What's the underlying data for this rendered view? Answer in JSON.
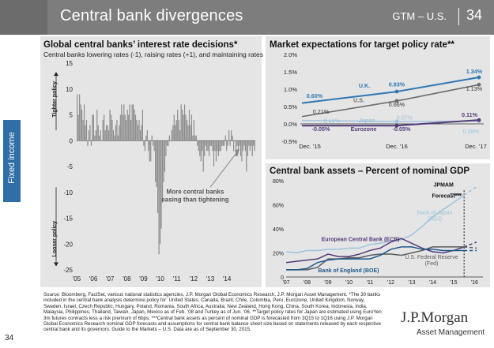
{
  "header": {
    "title": "Central bank divergences",
    "section": "GTM – U.S.",
    "page": "34"
  },
  "sidebar": {
    "label": "Fixed income"
  },
  "left_panel": {
    "title": "Global central banks’ interest rate decisions*",
    "subtitle": "Central banks lowering rates (-1), raising rates (+1), and maintaining rates (0)",
    "tighter_label": "Tighter policy",
    "looser_label": "Looser policy",
    "annotation": "More central banks easing than tightening"
  },
  "right_top": {
    "title": "Market expectations for target policy rate**"
  },
  "right_bottom": {
    "title": "Central bank assets – Percent of nominal GDP",
    "forecast_label": "JPMAM Forecast***"
  },
  "footnote": "Source: Bloomberg, FactSet, various national statistics agencies, J.P. Morgan Global Economics Research, J.P. Morgan Asset Management. *The 30 banks included in the central bank analysis determine policy for: United States, Canada, Brazil, Chile, Colombia, Peru, Eurozone, United Kingdom, Norway, Sweden, Israel, Czech Republic, Hungary, Poland, Romania, South Africa, Australia, New Zealand, Hong Kong, China, South Korea, Indonesia, India, Malaysia, Philippines, Thailand, Taiwan, Japan, Mexico as of Feb. ’08 and Turkey as of Jun. ’06. **Target policy rates for Japan are estimated using EuroYen 3m futures contracts less a risk premium of 6bps. ***Central bank assets as percent of nominal GDP is forecasted from 3Q15 to 1Q16 using J.P. Morgan Global Economics Research nominal GDP forecasts and assumptions for central bank balance sheet size based on statements released by each respective central bank and its governors. Guide to the Markets – U.S. Data are as of September 30, 2015.",
  "page_number": "34",
  "brand": {
    "name": "J.P.Morgan",
    "sub": "Asset Management"
  },
  "colors": {
    "bar": "#8c8c8c",
    "uk": "#2f77b4",
    "us": "#6b6b6b",
    "japan": "#9cc3dd",
    "euro": "#553a7a",
    "boj": "#9cc3dd",
    "ecb": "#553a7a",
    "fed": "#5a5a5a",
    "boe": "#1e5a8c"
  },
  "chart_data": [
    {
      "type": "bar",
      "title": "Global central banks’ interest rate decisions*",
      "ylabel": "",
      "ylim": [
        -25,
        15
      ],
      "yticks": [
        15,
        10,
        5,
        0,
        -5,
        -10,
        -15,
        -20,
        -25
      ],
      "xticks": [
        "'05",
        "'06",
        "'07",
        "'08",
        "'09",
        "'10",
        "'11",
        "'12",
        "'13",
        "'14"
      ],
      "x_range": [
        2005,
        2015.7
      ],
      "values": [
        9,
        5,
        9,
        7,
        6,
        4,
        7,
        3,
        4,
        -1,
        2,
        3,
        -1,
        5,
        5,
        1,
        2,
        6,
        3,
        1,
        2,
        0,
        4,
        5,
        2,
        3,
        3,
        2,
        6,
        5,
        4,
        2,
        1,
        3,
        4,
        1,
        3,
        5,
        7,
        5,
        7,
        5,
        4,
        6,
        5,
        7,
        4,
        7,
        7,
        6,
        5,
        4,
        3,
        4,
        2,
        3,
        6,
        -1,
        -2,
        1,
        2,
        -2,
        -4,
        -4,
        1,
        -1,
        -2,
        -8,
        -9,
        -14,
        -22,
        -20,
        -17,
        -12,
        -8,
        -6,
        -3,
        -1,
        -1,
        1,
        0,
        2,
        3,
        5,
        3,
        4,
        6,
        4,
        2,
        7,
        6,
        5,
        7,
        5,
        4,
        3,
        6,
        3,
        5,
        1,
        4,
        1,
        1,
        -1,
        -2,
        -3,
        -4,
        -2,
        -6,
        -3,
        -1,
        -2,
        -2,
        -3,
        -1,
        -1,
        -2,
        -5,
        -2,
        -4,
        -2,
        -3,
        -2,
        -2,
        -1,
        -1,
        -1,
        1,
        -2,
        -1,
        2,
        -1,
        2,
        1,
        -2,
        0,
        -3,
        -1,
        -2,
        -1,
        -3,
        -4,
        -2,
        -1,
        -2,
        -6,
        -3,
        -1,
        -2,
        -1,
        -3,
        -1,
        -2
      ]
    },
    {
      "type": "line",
      "title": "Market expectations for target policy rate**",
      "x": [
        "Dec. ’15",
        "Dec. ’16",
        "Dec. ’17"
      ],
      "ylim": [
        -0.5,
        2.0
      ],
      "yticks": [
        "2.0%",
        "1.5%",
        "1.0%",
        "0.5%",
        "0.0%",
        "-0.5%"
      ],
      "series": [
        {
          "name": "U.K.",
          "values": [
            0.6,
            0.93,
            1.34
          ],
          "labels": [
            "0.60%",
            "0.93%",
            "1.34%"
          ]
        },
        {
          "name": "U.S.",
          "values": [
            0.21,
            0.66,
            1.13
          ],
          "labels": [
            "0.21%",
            "0.66%",
            "1.13%"
          ]
        },
        {
          "name": "Japan",
          "values": [
            0.1,
            0.07,
            0.08
          ],
          "labels": [
            "0.10%",
            "0.07%",
            "0.08%"
          ]
        },
        {
          "name": "Eurozone",
          "values": [
            -0.05,
            -0.05,
            0.11
          ],
          "labels": [
            "-0.05%",
            "-0.05%",
            "0.11%"
          ]
        }
      ]
    },
    {
      "type": "line",
      "title": "Central bank assets – Percent of nominal GDP",
      "xticks": [
        "'07",
        "'08",
        "'09",
        "'10",
        "'11",
        "'12",
        "'13",
        "'14",
        "'15",
        "'16"
      ],
      "x_range": [
        2007,
        2016.4
      ],
      "ylim": [
        0,
        80
      ],
      "yticks": [
        "80%",
        "60%",
        "40%",
        "20%",
        "0"
      ],
      "forecast_start": 2015.5,
      "series": [
        {
          "name": "Bank of Japan (BOJ)",
          "x": [
            2007,
            2007.5,
            2008,
            2008.5,
            2009,
            2009.5,
            2010,
            2010.5,
            2011,
            2011.5,
            2012,
            2012.5,
            2013,
            2013.5,
            2014,
            2014.5,
            2015,
            2015.5
          ],
          "values": [
            21,
            20,
            22,
            22,
            23,
            23,
            24,
            24,
            27,
            28,
            30,
            31,
            35,
            42,
            50,
            56,
            62,
            68
          ],
          "forecast": [
            [
              2015.5,
              68
            ],
            [
              2016.1,
              75
            ]
          ]
        },
        {
          "name": "European Central Bank (ECB)",
          "x": [
            2007,
            2007.5,
            2008,
            2008.5,
            2009,
            2009.5,
            2010,
            2010.5,
            2011,
            2011.5,
            2012,
            2012.5,
            2013,
            2013.5,
            2014,
            2014.5,
            2015,
            2015.5
          ],
          "values": [
            12,
            13,
            14,
            15,
            19,
            17,
            17,
            19,
            22,
            24,
            29,
            32,
            28,
            24,
            21,
            20,
            22,
            25
          ],
          "forecast": [
            [
              2015.5,
              25
            ],
            [
              2016.1,
              29
            ]
          ]
        },
        {
          "name": "U.S. Federal Reserve (Fed)",
          "x": [
            2007,
            2007.5,
            2008,
            2008.5,
            2009,
            2009.5,
            2010,
            2010.5,
            2011,
            2011.5,
            2012,
            2012.5,
            2013,
            2013.5,
            2014,
            2014.5,
            2015,
            2015.5
          ],
          "values": [
            6,
            6,
            6,
            8,
            15,
            15,
            16,
            16,
            18,
            19,
            19,
            18,
            20,
            22,
            25,
            25,
            25,
            25
          ],
          "forecast": [
            [
              2015.5,
              25
            ],
            [
              2016.1,
              24
            ]
          ]
        },
        {
          "name": "Bank of England (BOE)",
          "x": [
            2007,
            2007.5,
            2008,
            2008.5,
            2009,
            2009.5,
            2010,
            2010.5,
            2011,
            2011.5,
            2012,
            2012.5,
            2013,
            2013.5,
            2014,
            2014.5,
            2015,
            2015.5
          ],
          "values": [
            6,
            6,
            7,
            12,
            14,
            15,
            15,
            15,
            15,
            18,
            23,
            25,
            25,
            23,
            23,
            22,
            22,
            22
          ],
          "forecast": [
            [
              2015.5,
              22
            ],
            [
              2016.1,
              22
            ]
          ]
        }
      ]
    }
  ]
}
